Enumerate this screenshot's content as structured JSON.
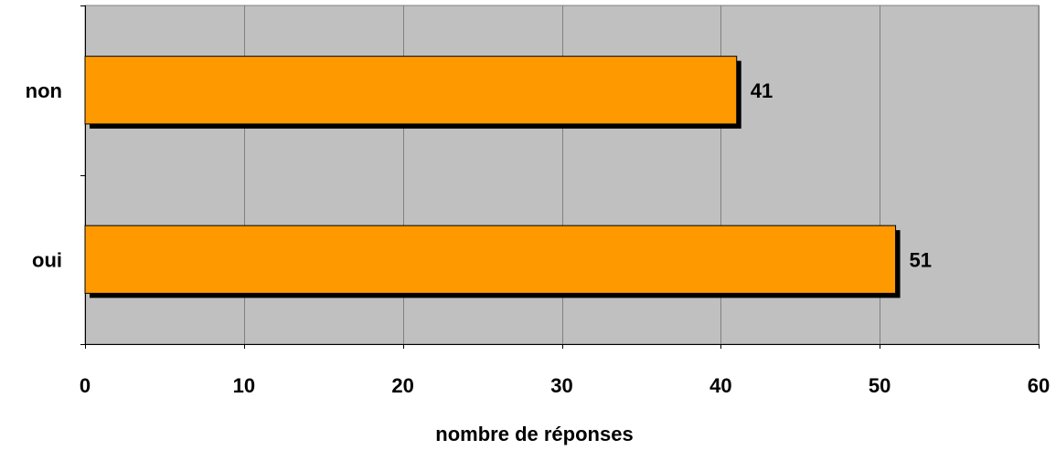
{
  "chart_data": {
    "type": "bar",
    "orientation": "horizontal",
    "categories": [
      "oui",
      "non"
    ],
    "values": [
      51,
      41
    ],
    "data_labels": [
      "51",
      "41"
    ],
    "title": "",
    "xlabel": "nombre de réponses",
    "ylabel": "",
    "xlim": [
      0,
      60
    ],
    "x_ticks": [
      0,
      10,
      20,
      30,
      40,
      50,
      60
    ],
    "x_tick_labels": [
      "0",
      "10",
      "20",
      "30",
      "40",
      "50",
      "60"
    ],
    "grid": "vertical",
    "legend": "none",
    "colors": {
      "bar": "#ff9900",
      "bar_shadow": "#000000",
      "plot_background": "#c0c0c0",
      "gridline": "#808080"
    }
  }
}
